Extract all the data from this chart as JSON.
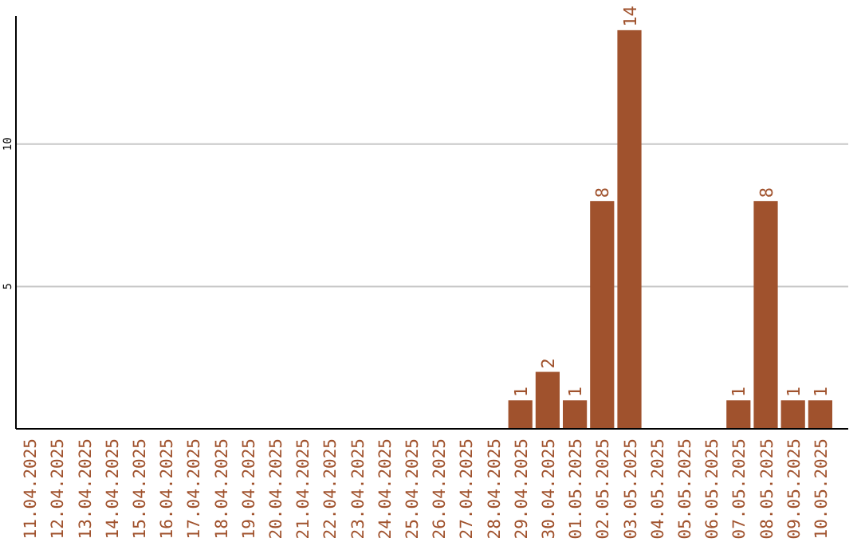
{
  "chart_data": {
    "type": "bar",
    "categories": [
      "11.04.2025",
      "12.04.2025",
      "13.04.2025",
      "14.04.2025",
      "15.04.2025",
      "16.04.2025",
      "17.04.2025",
      "18.04.2025",
      "19.04.2025",
      "20.04.2025",
      "21.04.2025",
      "22.04.2025",
      "23.04.2025",
      "24.04.2025",
      "25.04.2025",
      "26.04.2025",
      "27.04.2025",
      "28.04.2025",
      "29.04.2025",
      "30.04.2025",
      "01.05.2025",
      "02.05.2025",
      "03.05.2025",
      "04.05.2025",
      "05.05.2025",
      "06.05.2025",
      "07.05.2025",
      "08.05.2025",
      "09.05.2025",
      "10.05.2025"
    ],
    "values": [
      0,
      0,
      0,
      0,
      0,
      0,
      0,
      0,
      0,
      0,
      0,
      0,
      0,
      0,
      0,
      0,
      0,
      0,
      1,
      2,
      1,
      8,
      14,
      0,
      0,
      0,
      1,
      8,
      1,
      1
    ],
    "value_labels": [
      null,
      null,
      null,
      null,
      null,
      null,
      null,
      null,
      null,
      null,
      null,
      null,
      null,
      null,
      null,
      null,
      null,
      null,
      "1",
      "2",
      "1",
      "8",
      "14",
      null,
      null,
      null,
      "1",
      "8",
      "1",
      "1"
    ],
    "color": "#a0522d",
    "ylim": [
      0,
      14.5
    ],
    "yticks": [
      5,
      10
    ],
    "grid": "y"
  }
}
